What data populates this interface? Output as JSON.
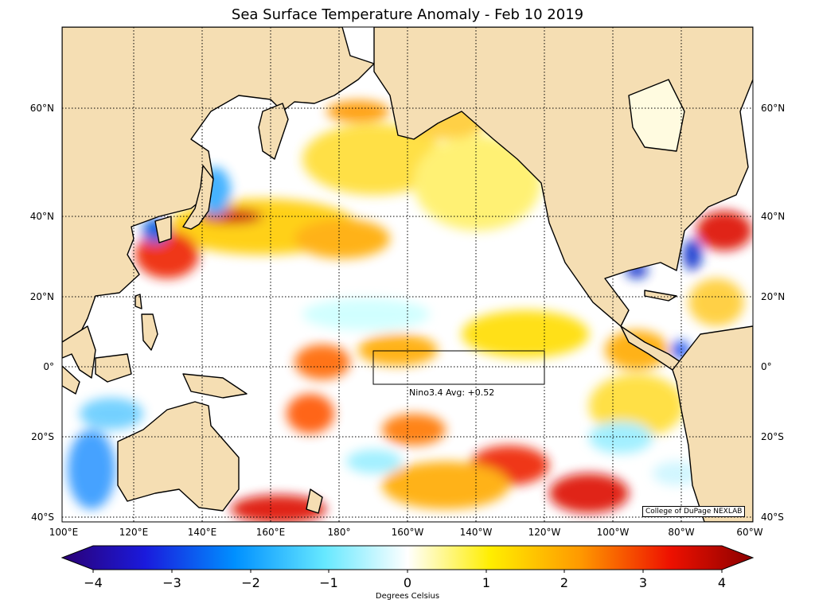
{
  "title": "Sea Surface Temperature Anomaly - Feb 10 2019",
  "credit": "College of DuPage NEXLAB",
  "nino_label": "Nino3.4 Avg: +0.52",
  "colorbar": {
    "label": "Degrees Celsius",
    "ticks": [
      "−4",
      "−3",
      "−2",
      "−1",
      "0",
      "1",
      "2",
      "3",
      "4"
    ],
    "min": -4,
    "max": 4
  },
  "lon_labels": [
    "100°E",
    "120°E",
    "140°E",
    "160°E",
    "180°",
    "160°W",
    "140°W",
    "120°W",
    "100°W",
    "80°W",
    "60°W"
  ],
  "lat_labels": [
    "60°N",
    "40°N",
    "20°N",
    "0°",
    "20°S",
    "40°S"
  ],
  "colors": {
    "land": "#f5deb3",
    "ocean_neutral": "#ffffff",
    "cold": "#1e90ff",
    "warm": "#ff2000"
  }
}
